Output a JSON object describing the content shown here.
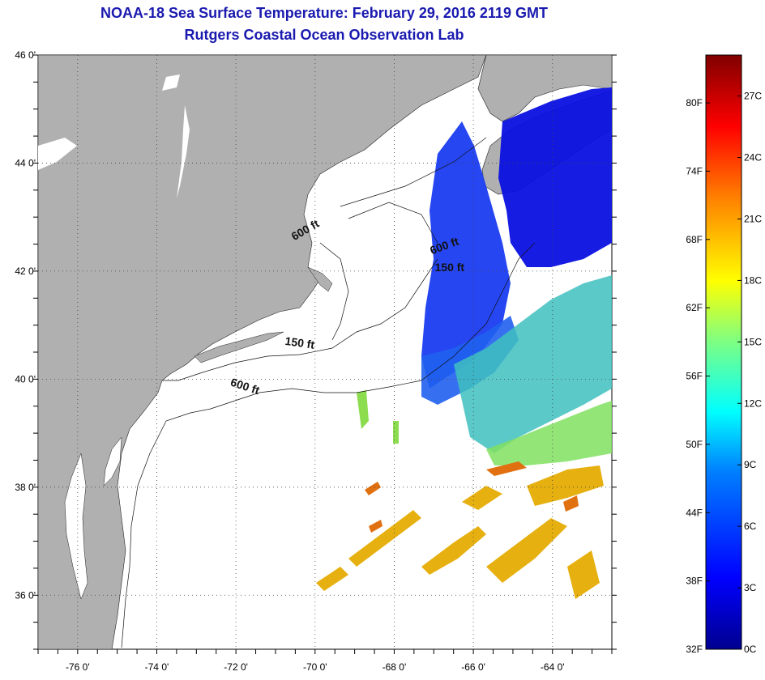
{
  "title": "NOAA-18 Sea Surface Temperature:  February 29, 2016 2119 GMT",
  "subtitle": "Rutgers Coastal Ocean Observation Lab",
  "map": {
    "lon_range": [
      -77,
      -62.5
    ],
    "lat_range": [
      35,
      46
    ],
    "lon_ticks": [
      {
        "value": -76,
        "label": "-76 0'"
      },
      {
        "value": -74,
        "label": "-74 0'"
      },
      {
        "value": -72,
        "label": "-72 0'"
      },
      {
        "value": -70,
        "label": "-70 0'"
      },
      {
        "value": -68,
        "label": "-68 0'"
      },
      {
        "value": -66,
        "label": "-66 0'"
      },
      {
        "value": -64,
        "label": "-64 0'"
      }
    ],
    "lat_ticks": [
      {
        "value": 46,
        "label": "46 0'"
      },
      {
        "value": 44,
        "label": "44 0'"
      },
      {
        "value": 42,
        "label": "42 0'"
      },
      {
        "value": 40,
        "label": "40 0'"
      },
      {
        "value": 38,
        "label": "38 0'"
      },
      {
        "value": 36,
        "label": "36 0'"
      }
    ],
    "grid": "dotted",
    "land_color": "#b0b0b0",
    "contour_labels": [
      {
        "text": "600 ft",
        "lon": -70.2,
        "lat": 42.7,
        "angle": 30
      },
      {
        "text": "600 ft",
        "lon": -66.7,
        "lat": 42.4,
        "angle": 20
      },
      {
        "text": "150 ft",
        "lon": -66.6,
        "lat": 42.0,
        "angle": 0
      },
      {
        "text": "150 ft",
        "lon": -70.4,
        "lat": 40.6,
        "angle": -8
      },
      {
        "text": "600 ft",
        "lon": -71.8,
        "lat": 39.8,
        "angle": -18
      }
    ]
  },
  "colorbar": {
    "min_c": 0,
    "max_c": 29,
    "celsius_labels": [
      {
        "value": 0,
        "label": "0C"
      },
      {
        "value": 3,
        "label": "3C"
      },
      {
        "value": 6,
        "label": "6C"
      },
      {
        "value": 9,
        "label": "9C"
      },
      {
        "value": 12,
        "label": "12C"
      },
      {
        "value": 15,
        "label": "15C"
      },
      {
        "value": 18,
        "label": "18C"
      },
      {
        "value": 21,
        "label": "21C"
      },
      {
        "value": 24,
        "label": "24C"
      },
      {
        "value": 27,
        "label": "27C"
      }
    ],
    "fahrenheit_labels": [
      {
        "value": 32,
        "label": "32F"
      },
      {
        "value": 38,
        "label": "38F"
      },
      {
        "value": 44,
        "label": "44F"
      },
      {
        "value": 50,
        "label": "50F"
      },
      {
        "value": 56,
        "label": "56F"
      },
      {
        "value": 62,
        "label": "62F"
      },
      {
        "value": 68,
        "label": "68F"
      },
      {
        "value": 74,
        "label": "74F"
      },
      {
        "value": 80,
        "label": "80F"
      }
    ]
  }
}
